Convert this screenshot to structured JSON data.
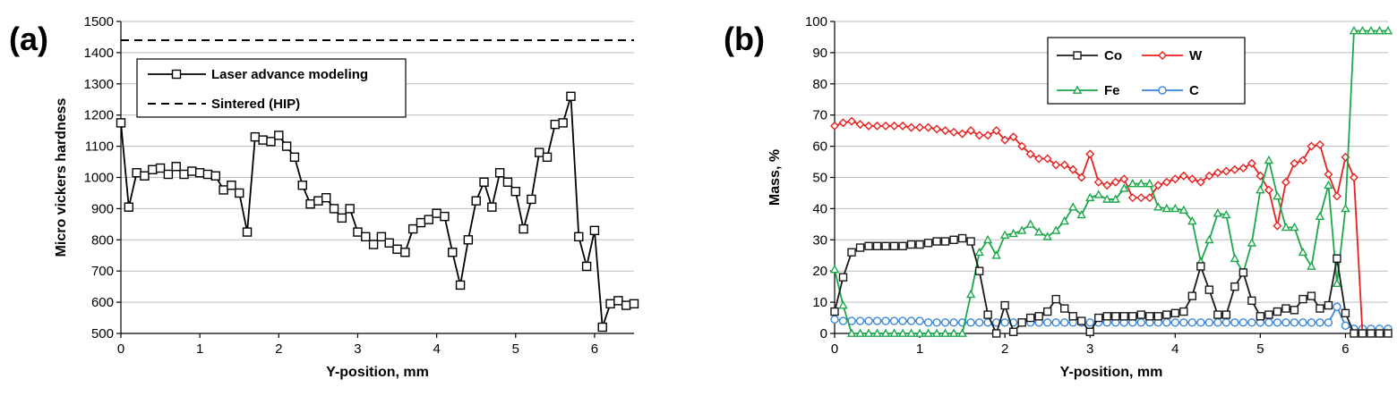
{
  "chart_data": [
    {
      "panel_label": "(a)",
      "type": "line",
      "xlabel": "Y-position, mm",
      "ylabel": "Micro vickers hardness",
      "xlim": [
        0,
        6.5
      ],
      "ylim": [
        500,
        1500
      ],
      "xticks": [
        0,
        1,
        2,
        3,
        4,
        5,
        6
      ],
      "yticks": [
        500,
        600,
        700,
        800,
        900,
        1000,
        1100,
        1200,
        1300,
        1400,
        1500
      ],
      "grid": "horizontal",
      "legend_position": "top-left",
      "series": [
        {
          "name": "Laser advance modeling",
          "color": "#000000",
          "marker": "square",
          "line_style": "solid",
          "x": [
            0,
            0.1,
            0.2,
            0.3,
            0.4,
            0.5,
            0.6,
            0.7,
            0.8,
            0.9,
            1.0,
            1.1,
            1.2,
            1.3,
            1.4,
            1.5,
            1.6,
            1.7,
            1.8,
            1.9,
            2.0,
            2.1,
            2.2,
            2.3,
            2.4,
            2.5,
            2.6,
            2.7,
            2.8,
            2.9,
            3.0,
            3.1,
            3.2,
            3.3,
            3.4,
            3.5,
            3.6,
            3.7,
            3.8,
            3.9,
            4.0,
            4.1,
            4.2,
            4.3,
            4.4,
            4.5,
            4.6,
            4.7,
            4.8,
            4.9,
            5.0,
            5.1,
            5.2,
            5.3,
            5.4,
            5.5,
            5.6,
            5.7,
            5.8,
            5.9,
            6.0,
            6.1,
            6.2,
            6.3,
            6.4,
            6.5
          ],
          "y": [
            1175,
            905,
            1015,
            1005,
            1025,
            1030,
            1010,
            1035,
            1010,
            1020,
            1015,
            1010,
            1005,
            960,
            975,
            950,
            825,
            1130,
            1120,
            1115,
            1135,
            1100,
            1065,
            975,
            915,
            925,
            935,
            900,
            870,
            900,
            825,
            810,
            785,
            810,
            790,
            770,
            760,
            835,
            855,
            865,
            885,
            875,
            760,
            655,
            800,
            925,
            985,
            905,
            1015,
            985,
            955,
            835,
            930,
            1080,
            1065,
            1170,
            1175,
            1260,
            810,
            715,
            830,
            520,
            595,
            605,
            590,
            595
          ]
        },
        {
          "name": "Sintered (HIP)",
          "color": "#000000",
          "line_style": "dashed",
          "y_constant": 1440
        }
      ]
    },
    {
      "panel_label": "(b)",
      "type": "line",
      "xlabel": "Y-position, mm",
      "ylabel": "Mass, %",
      "xlim": [
        0,
        6.5
      ],
      "ylim": [
        0,
        100
      ],
      "xticks": [
        0,
        1,
        2,
        3,
        4,
        5,
        6
      ],
      "yticks": [
        0,
        10,
        20,
        30,
        40,
        50,
        60,
        70,
        80,
        90,
        100
      ],
      "grid": "horizontal",
      "legend_position": "top-center",
      "x": [
        0,
        0.1,
        0.2,
        0.3,
        0.4,
        0.5,
        0.6,
        0.7,
        0.8,
        0.9,
        1.0,
        1.1,
        1.2,
        1.3,
        1.4,
        1.5,
        1.6,
        1.7,
        1.8,
        1.9,
        2.0,
        2.1,
        2.2,
        2.3,
        2.4,
        2.5,
        2.6,
        2.7,
        2.8,
        2.9,
        3.0,
        3.1,
        3.2,
        3.3,
        3.4,
        3.5,
        3.6,
        3.7,
        3.8,
        3.9,
        4.0,
        4.1,
        4.2,
        4.3,
        4.4,
        4.5,
        4.6,
        4.7,
        4.8,
        4.9,
        5.0,
        5.1,
        5.2,
        5.3,
        5.4,
        5.5,
        5.6,
        5.7,
        5.8,
        5.9,
        6.0,
        6.1,
        6.2,
        6.3,
        6.4,
        6.5
      ],
      "series": [
        {
          "name": "Co",
          "color": "#1a1a1a",
          "marker": "square",
          "values": [
            7,
            18,
            26,
            27.5,
            28,
            28,
            28,
            28,
            28,
            28.5,
            28.5,
            29,
            29.5,
            29.5,
            30,
            30.5,
            29.5,
            20,
            6,
            0,
            9,
            0.5,
            3.5,
            5,
            5.5,
            7,
            11,
            8,
            5.5,
            4,
            0.5,
            5,
            5.5,
            5.5,
            5.5,
            5.5,
            6,
            5.5,
            5.5,
            6,
            6.5,
            7,
            12,
            21.5,
            14,
            6,
            6,
            15,
            19.5,
            10.5,
            5.5,
            6,
            7,
            8,
            7.5,
            11,
            12,
            8,
            9,
            24,
            6.5,
            0,
            0,
            0,
            0,
            0
          ]
        },
        {
          "name": "W",
          "color": "#e8201f",
          "marker": "diamond",
          "values": [
            66.5,
            67.5,
            68,
            67,
            66.5,
            66.5,
            66.5,
            66.5,
            66.5,
            66,
            66,
            66,
            65.5,
            65,
            64.5,
            64,
            65,
            63.5,
            63.5,
            65,
            62,
            63,
            60,
            57.5,
            56,
            56,
            54,
            54,
            52.5,
            50,
            57.5,
            48.5,
            47.5,
            48.5,
            49.5,
            43.5,
            43.5,
            43.5,
            47.5,
            48.5,
            49.5,
            50.5,
            49.5,
            48.5,
            50.5,
            51.5,
            52,
            52.5,
            53,
            54.5,
            50.5,
            46,
            34.5,
            48.5,
            54.5,
            55.5,
            60,
            60.5,
            51,
            44,
            56.5,
            50,
            0,
            0,
            0,
            0
          ]
        },
        {
          "name": "Fe",
          "color": "#1ca84a",
          "marker": "triangle",
          "values": [
            20.5,
            9,
            0,
            0,
            0,
            0,
            0,
            0,
            0,
            0,
            0,
            0,
            0,
            0,
            0,
            0,
            12.5,
            26,
            30,
            25,
            31.5,
            32,
            33,
            35,
            32.5,
            31,
            33,
            36,
            40.5,
            38,
            43.5,
            44.5,
            43,
            43,
            46.5,
            48,
            48,
            48,
            40.5,
            40,
            40,
            39.5,
            36,
            23,
            30,
            38.5,
            38,
            24,
            19.5,
            29,
            46,
            55.5,
            44,
            34,
            34,
            26,
            21.5,
            37.5,
            47.5,
            16,
            40,
            97,
            97,
            97,
            97,
            97
          ]
        },
        {
          "name": "C",
          "color": "#3a86d8",
          "marker": "circle",
          "values": [
            4.5,
            4,
            4,
            4,
            4,
            4,
            4,
            4,
            4,
            4,
            4,
            3.5,
            3.5,
            3.5,
            3.5,
            3.5,
            3.5,
            3.5,
            3.5,
            3.5,
            3.5,
            3.5,
            3.5,
            3.5,
            3.5,
            3.5,
            3.5,
            3.5,
            3.5,
            3.5,
            3.5,
            3.5,
            3.5,
            3.5,
            3.5,
            3.5,
            3.5,
            3.5,
            3.5,
            3.5,
            3.5,
            3.5,
            3.5,
            3.5,
            3.5,
            3.5,
            3.5,
            3.5,
            3.5,
            3.5,
            3.5,
            3.5,
            3.5,
            3.5,
            3.5,
            3.5,
            3.5,
            3.5,
            3.5,
            8.5,
            2.5,
            1.5,
            1.5,
            1.5,
            1.5,
            1.5
          ]
        }
      ]
    }
  ]
}
